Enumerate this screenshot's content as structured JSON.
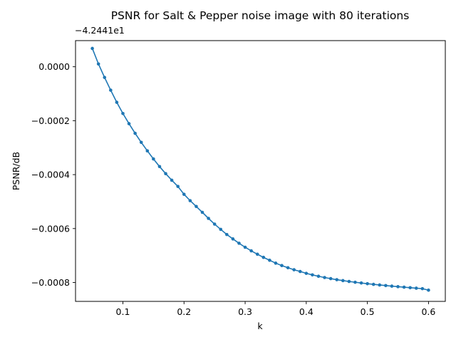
{
  "chart_data": {
    "type": "line",
    "title": "PSNR for Salt & Pepper noise image with 80 iterations",
    "xlabel": "k",
    "ylabel": "PSNR/dB",
    "y_offset_label": "−4.2441e1",
    "xlim": [
      0.0225,
      0.6275
    ],
    "ylim": [
      -0.00087,
      9.69e-05
    ],
    "x_ticks": [
      0.1,
      0.2,
      0.3,
      0.4,
      0.5,
      0.6
    ],
    "x_tick_labels": [
      "0.1",
      "0.2",
      "0.3",
      "0.4",
      "0.5",
      "0.6"
    ],
    "y_ticks": [
      0.0,
      -0.0002,
      -0.0004,
      -0.0006,
      -0.0008
    ],
    "y_tick_labels": [
      "0.0000",
      "−0.0002",
      "−0.0004",
      "−0.0006",
      "−0.0008"
    ],
    "grid": false,
    "line_color": "#1f77b4",
    "marker": "dot",
    "series": [
      {
        "x": [
          0.05,
          0.06,
          0.07,
          0.08,
          0.09,
          0.1,
          0.11,
          0.12,
          0.13,
          0.14,
          0.15,
          0.16,
          0.17,
          0.18,
          0.19,
          0.2,
          0.21,
          0.22,
          0.23,
          0.24,
          0.25,
          0.26,
          0.27,
          0.28,
          0.29,
          0.3,
          0.31,
          0.32,
          0.33,
          0.34,
          0.35,
          0.36,
          0.37,
          0.38,
          0.39,
          0.4,
          0.41,
          0.42,
          0.43,
          0.44,
          0.45,
          0.46,
          0.47,
          0.48,
          0.49,
          0.5,
          0.51,
          0.52,
          0.53,
          0.54,
          0.55,
          0.56,
          0.57,
          0.58,
          0.59,
          0.6
        ],
        "y": [
          6.8e-05,
          1.04e-05,
          -3.96e-05,
          -8.68e-05,
          -0.0001319,
          -0.0001733,
          -0.0002111,
          -0.0002468,
          -0.0002803,
          -0.0003118,
          -0.0003419,
          -0.0003702,
          -0.0003963,
          -0.0004208,
          -0.0004438,
          -0.0004729,
          -0.0004965,
          -0.0005181,
          -0.0005398,
          -0.0005622,
          -0.0005835,
          -0.000603,
          -0.000622,
          -0.0006384,
          -0.0006545,
          -0.0006692,
          -0.0006825,
          -0.0006951,
          -0.0007068,
          -0.0007175,
          -0.0007282,
          -0.0007372,
          -0.0007452,
          -0.0007527,
          -0.0007591,
          -0.000766,
          -0.0007717,
          -0.0007768,
          -0.0007815,
          -0.0007856,
          -0.0007895,
          -0.000793,
          -0.0007961,
          -0.000799,
          -0.0008018,
          -0.0008044,
          -0.0008068,
          -0.0008091,
          -0.0008113,
          -0.0008134,
          -0.0008154,
          -0.0008173,
          -0.0008192,
          -0.000821,
          -0.0008228,
          -0.0008283
        ]
      }
    ]
  }
}
